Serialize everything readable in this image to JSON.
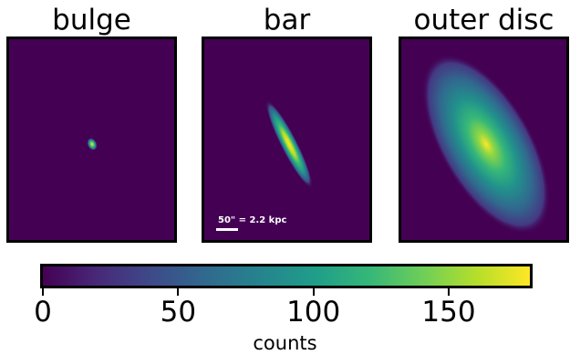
{
  "panels": [
    {
      "title": "bulge",
      "peak_fraction": 1.0
    },
    {
      "title": "bar",
      "peak_fraction": 1.0,
      "scalebar_label": "50\" = 2.2 kpc"
    },
    {
      "title": "outer disc",
      "peak_fraction": 0.97
    }
  ],
  "colorbar": {
    "colormap": "viridis",
    "range": [
      0,
      180
    ],
    "ticks": [
      "0",
      "50",
      "100",
      "150"
    ],
    "label": "counts",
    "colors": [
      "#440154",
      "#3b528b",
      "#21918c",
      "#5ec962",
      "#fde725"
    ]
  }
}
